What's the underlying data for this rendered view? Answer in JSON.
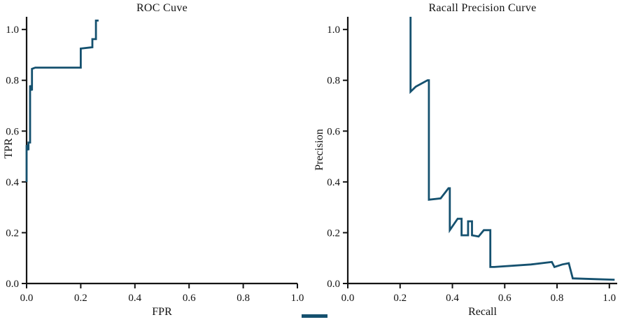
{
  "figure": {
    "background": "#ffffff",
    "axis_color": "#141414",
    "line_color": "#15516f",
    "artifact_color": "#15516f"
  },
  "chart_data": [
    {
      "type": "line",
      "title": "ROC Cuve",
      "xlabel": "FPR",
      "ylabel": "TPR",
      "xlim": [
        0,
        1.0
      ],
      "ylim": [
        0,
        1.05
      ],
      "xticks": [
        0.0,
        0.2,
        0.4,
        0.6,
        0.8,
        1.0
      ],
      "yticks": [
        0.0,
        0.2,
        0.4,
        0.6,
        0.8,
        1.0
      ],
      "grid": false,
      "legend": "none",
      "points": [
        [
          0.0,
          0.4
        ],
        [
          0.0,
          0.545
        ],
        [
          0.007,
          0.525
        ],
        [
          0.007,
          0.555
        ],
        [
          0.013,
          0.555
        ],
        [
          0.013,
          0.78
        ],
        [
          0.02,
          0.76
        ],
        [
          0.02,
          0.845
        ],
        [
          0.032,
          0.85
        ],
        [
          0.2,
          0.85
        ],
        [
          0.2,
          0.925
        ],
        [
          0.243,
          0.93
        ],
        [
          0.243,
          0.962
        ],
        [
          0.256,
          0.962
        ],
        [
          0.256,
          1.035
        ],
        [
          0.266,
          1.035
        ]
      ]
    },
    {
      "type": "line",
      "title": "Racall Precision Curve",
      "xlabel": "Recall",
      "ylabel": "Precision",
      "xlim": [
        0,
        1.03
      ],
      "ylim": [
        0,
        1.05
      ],
      "xticks": [
        0.0,
        0.2,
        0.4,
        0.6,
        0.8,
        1.0
      ],
      "yticks": [
        0.0,
        0.2,
        0.4,
        0.6,
        0.8,
        1.0
      ],
      "grid": false,
      "legend": "none",
      "points": [
        [
          0.24,
          1.05
        ],
        [
          0.24,
          0.755
        ],
        [
          0.26,
          0.775
        ],
        [
          0.305,
          0.8
        ],
        [
          0.31,
          0.8
        ],
        [
          0.31,
          0.33
        ],
        [
          0.355,
          0.335
        ],
        [
          0.385,
          0.375
        ],
        [
          0.39,
          0.375
        ],
        [
          0.39,
          0.21
        ],
        [
          0.42,
          0.255
        ],
        [
          0.435,
          0.255
        ],
        [
          0.435,
          0.19
        ],
        [
          0.46,
          0.19
        ],
        [
          0.46,
          0.245
        ],
        [
          0.475,
          0.245
        ],
        [
          0.475,
          0.19
        ],
        [
          0.5,
          0.185
        ],
        [
          0.52,
          0.21
        ],
        [
          0.545,
          0.21
        ],
        [
          0.545,
          0.065
        ],
        [
          0.56,
          0.065
        ],
        [
          0.7,
          0.075
        ],
        [
          0.78,
          0.085
        ],
        [
          0.79,
          0.065
        ],
        [
          0.82,
          0.075
        ],
        [
          0.845,
          0.08
        ],
        [
          0.86,
          0.02
        ],
        [
          0.95,
          0.017
        ],
        [
          1.02,
          0.015
        ]
      ]
    }
  ]
}
